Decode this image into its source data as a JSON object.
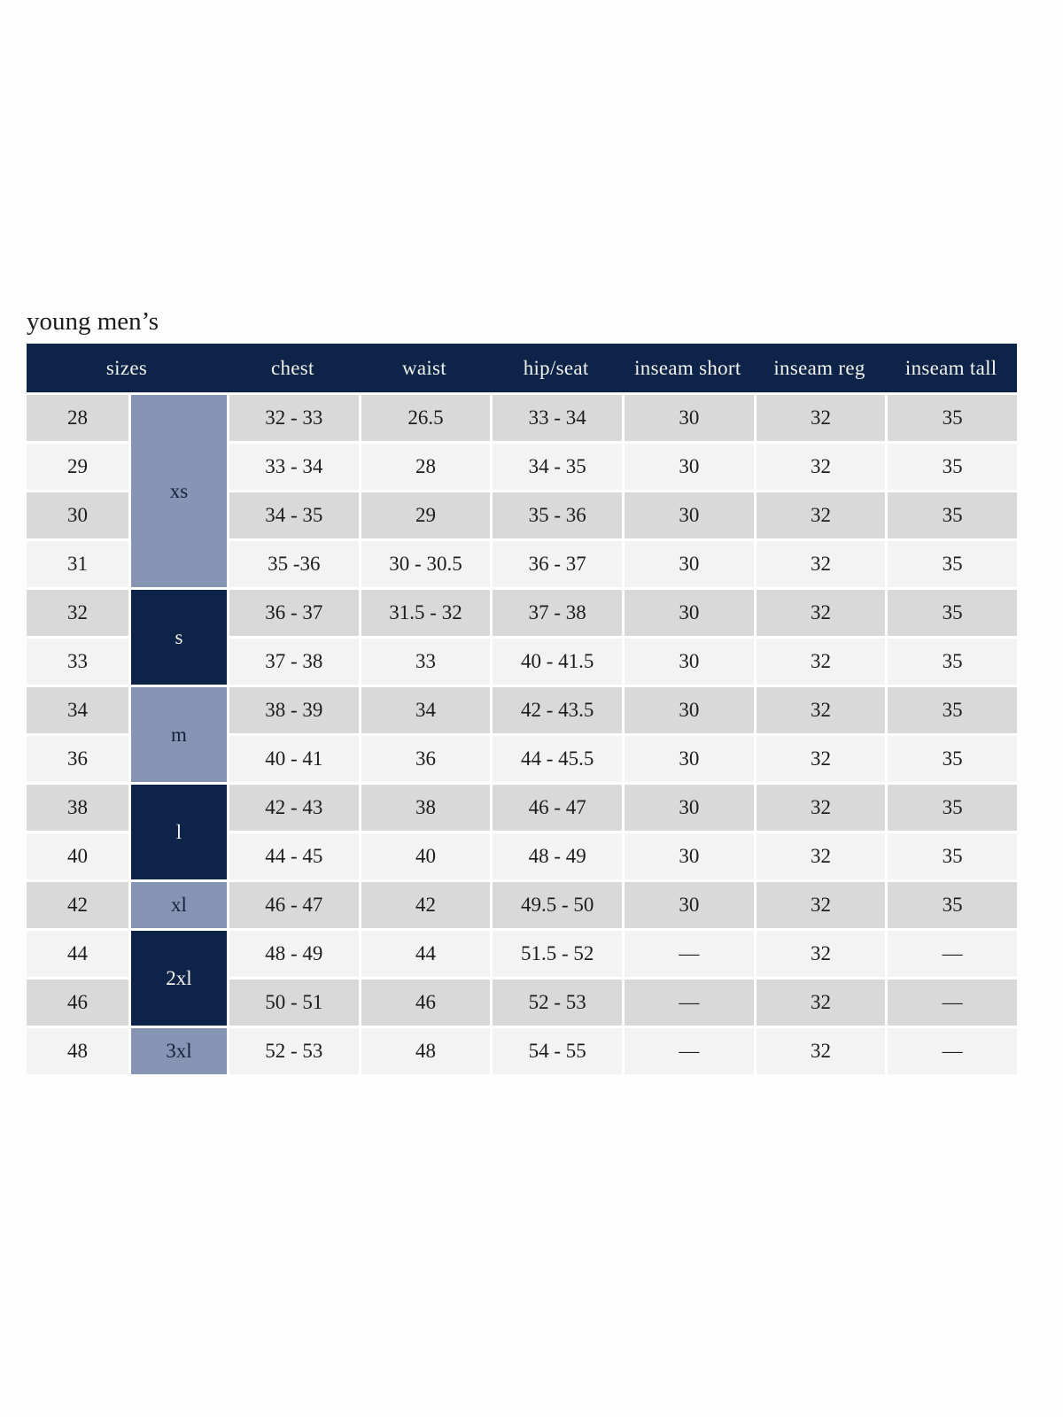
{
  "page": {
    "title": "young men’s"
  },
  "table": {
    "columns": [
      "sizes",
      "chest",
      "waist",
      "hip/seat",
      "inseam short",
      "inseam reg",
      "inseam tall"
    ],
    "measure_keys": [
      "chest",
      "waist",
      "hip-seat",
      "inseam-short",
      "inseam-reg",
      "inseam-tall"
    ],
    "groups": [
      {
        "label": "xs",
        "span": 4,
        "variant": "light"
      },
      {
        "label": "s",
        "span": 2,
        "variant": "dark"
      },
      {
        "label": "m",
        "span": 2,
        "variant": "light"
      },
      {
        "label": "l",
        "span": 2,
        "variant": "dark"
      },
      {
        "label": "xl",
        "span": 1,
        "variant": "light"
      },
      {
        "label": "2xl",
        "span": 2,
        "variant": "dark"
      },
      {
        "label": "3xl",
        "span": 1,
        "variant": "light"
      }
    ],
    "rows": [
      {
        "size": "28",
        "values": [
          "32 - 33",
          "26.5",
          "33 - 34",
          "30",
          "32",
          "35"
        ]
      },
      {
        "size": "29",
        "values": [
          "33 - 34",
          "28",
          "34 - 35",
          "30",
          "32",
          "35"
        ]
      },
      {
        "size": "30",
        "values": [
          "34 - 35",
          "29",
          "35 - 36",
          "30",
          "32",
          "35"
        ]
      },
      {
        "size": "31",
        "values": [
          "35 -36",
          "30 - 30.5",
          "36 - 37",
          "30",
          "32",
          "35"
        ]
      },
      {
        "size": "32",
        "values": [
          "36 - 37",
          "31.5 - 32",
          "37 - 38",
          "30",
          "32",
          "35"
        ]
      },
      {
        "size": "33",
        "values": [
          "37 - 38",
          "33",
          "40 - 41.5",
          "30",
          "32",
          "35"
        ]
      },
      {
        "size": "34",
        "values": [
          "38 - 39",
          "34",
          "42 - 43.5",
          "30",
          "32",
          "35"
        ]
      },
      {
        "size": "36",
        "values": [
          "40 - 41",
          "36",
          "44 - 45.5",
          "30",
          "32",
          "35"
        ]
      },
      {
        "size": "38",
        "values": [
          "42 - 43",
          "38",
          "46 - 47",
          "30",
          "32",
          "35"
        ]
      },
      {
        "size": "40",
        "values": [
          "44 - 45",
          "40",
          "48 - 49",
          "30",
          "32",
          "35"
        ]
      },
      {
        "size": "42",
        "values": [
          "46 - 47",
          "42",
          "49.5 - 50",
          "30",
          "32",
          "35"
        ]
      },
      {
        "size": "44",
        "values": [
          "48 - 49",
          "44",
          "51.5 - 52",
          "—",
          "32",
          "—"
        ]
      },
      {
        "size": "46",
        "values": [
          "50 - 51",
          "46",
          "52 - 53",
          "—",
          "32",
          "—"
        ]
      },
      {
        "size": "48",
        "values": [
          "52 - 53",
          "48",
          "54 - 55",
          "—",
          "32",
          "—"
        ]
      }
    ]
  },
  "colors": {
    "navy": "#0d2347",
    "light_blue": "#8795b4",
    "row_shade_dark": "#d9d9d9",
    "row_shade_light": "#f3f3f3",
    "header_text": "#f2f2ee",
    "body_text": "#1c1c1c",
    "group_light_text": "#14213d",
    "group_dark_text": "#f2f2ee"
  }
}
